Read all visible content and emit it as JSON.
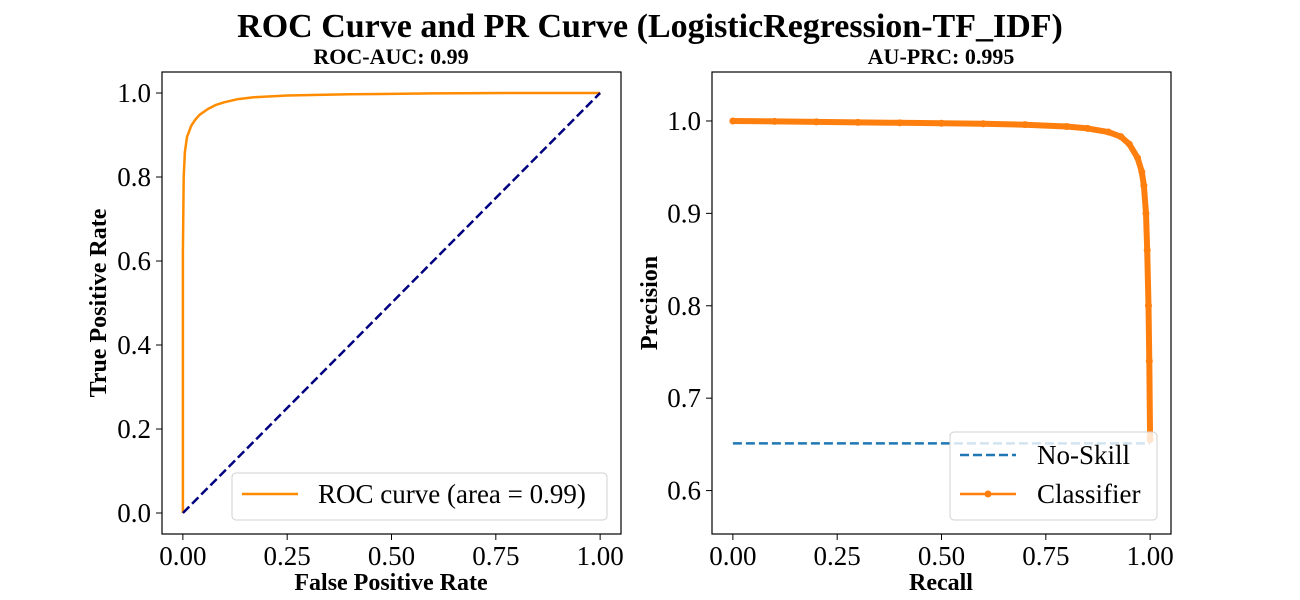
{
  "figure": {
    "suptitle": "ROC Curve and PR Curve (LogisticRegression-TF_IDF)"
  },
  "chart_data": [
    {
      "type": "line",
      "title": "ROC-AUC: 0.99",
      "xlabel": "False Positive Rate",
      "ylabel": "True Positive Rate",
      "xlim": [
        -0.05,
        1.05
      ],
      "ylim": [
        -0.05,
        1.05
      ],
      "xticks": [
        "0.00",
        "0.25",
        "0.50",
        "0.75",
        "1.00"
      ],
      "yticks": [
        "0.0",
        "0.2",
        "0.4",
        "0.6",
        "0.8",
        "1.0"
      ],
      "legend_position": "lower-right",
      "series": [
        {
          "name": "ROC curve (area = 0.99)",
          "color": "#ff8c00",
          "style": "solid",
          "x": [
            0.0,
            0.0,
            0.002,
            0.005,
            0.01,
            0.02,
            0.03,
            0.04,
            0.06,
            0.08,
            0.1,
            0.13,
            0.17,
            0.25,
            0.4,
            0.6,
            0.8,
            1.0
          ],
          "y": [
            0.0,
            0.62,
            0.8,
            0.86,
            0.895,
            0.922,
            0.937,
            0.948,
            0.962,
            0.972,
            0.978,
            0.985,
            0.99,
            0.994,
            0.997,
            0.999,
            1.0,
            1.0
          ]
        },
        {
          "color": "#000080",
          "style": "dashed",
          "x": [
            0.0,
            1.0
          ],
          "y": [
            0.0,
            1.0
          ]
        }
      ]
    },
    {
      "type": "line",
      "title": "AU-PRC: 0.995",
      "xlabel": "Recall",
      "ylabel": "Precision",
      "xlim": [
        -0.05,
        1.05
      ],
      "ylim": [
        0.553,
        1.053
      ],
      "xticks": [
        "0.00",
        "0.25",
        "0.50",
        "0.75",
        "1.00"
      ],
      "yticks": [
        "0.6",
        "0.7",
        "0.8",
        "0.9",
        "1.0"
      ],
      "legend_position": "lower-right",
      "series": [
        {
          "name": "No-Skill",
          "color": "#1f77b4",
          "style": "dashed",
          "x": [
            0.0,
            1.0
          ],
          "y": [
            0.651,
            0.651
          ]
        },
        {
          "name": "Classifier",
          "color": "#ff7f0e",
          "style": "solid-marker",
          "x": [
            0.0,
            0.1,
            0.2,
            0.3,
            0.4,
            0.5,
            0.6,
            0.7,
            0.8,
            0.85,
            0.9,
            0.93,
            0.95,
            0.97,
            0.98,
            0.985,
            0.99,
            0.993,
            0.996,
            0.998,
            1.0
          ],
          "y": [
            1.0,
            0.9995,
            0.999,
            0.9985,
            0.998,
            0.9975,
            0.997,
            0.996,
            0.994,
            0.992,
            0.988,
            0.983,
            0.975,
            0.96,
            0.945,
            0.93,
            0.9,
            0.86,
            0.8,
            0.74,
            0.655
          ]
        }
      ]
    }
  ]
}
